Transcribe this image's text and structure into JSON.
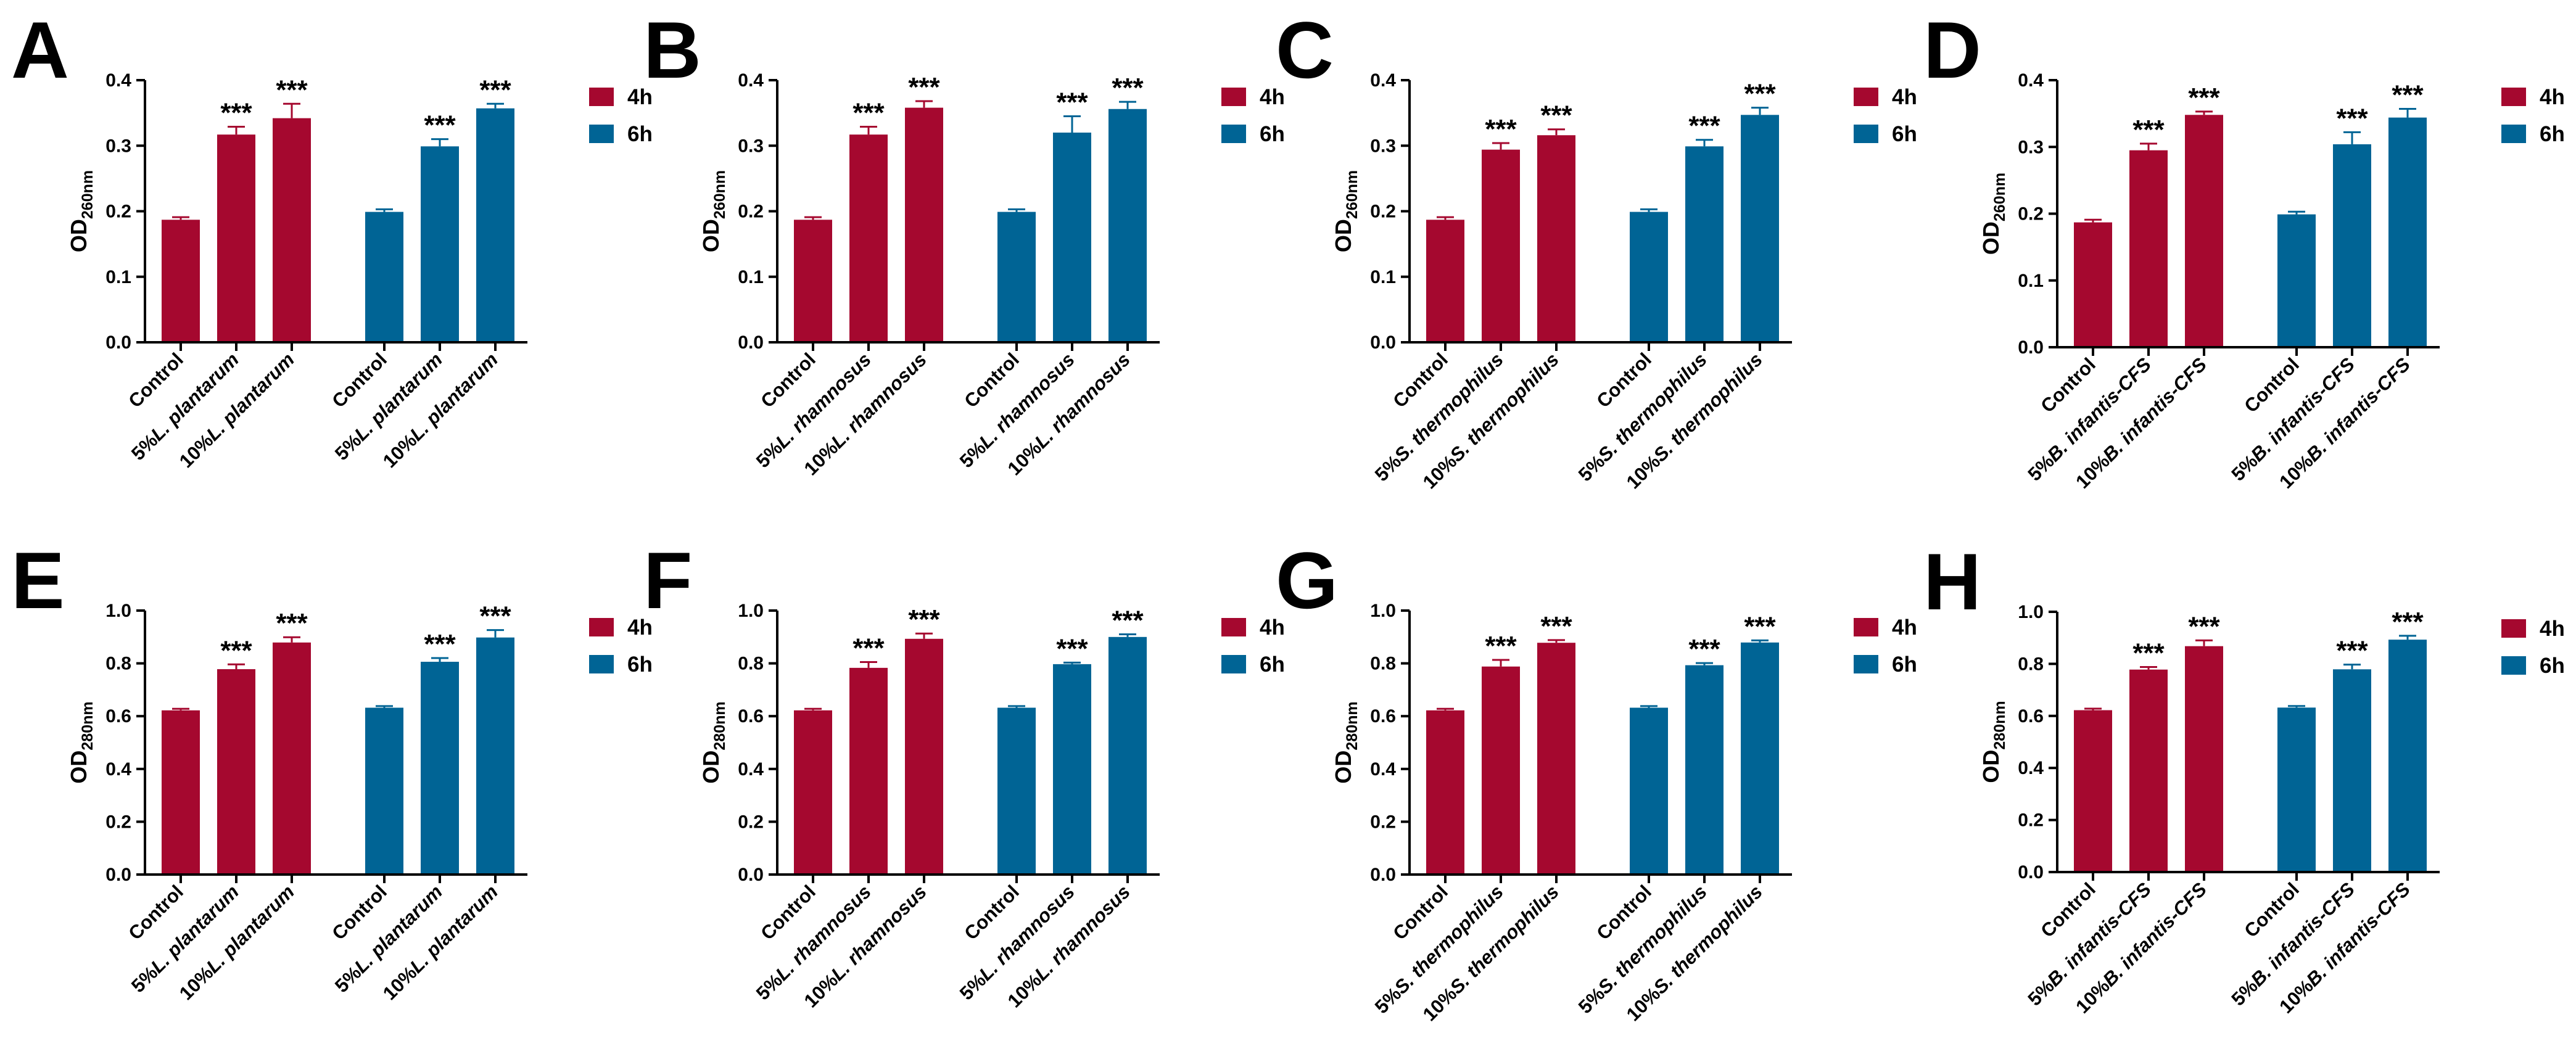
{
  "colors": {
    "4h": "#a5082f",
    "6h": "#006495"
  },
  "chart_data": [
    {
      "panel": "A",
      "type": "bar",
      "ylabel": {
        "main": "OD",
        "sub": "260nm"
      },
      "ylim": [
        0,
        0.4
      ],
      "yticks": [
        "0.0",
        "0.1",
        "0.2",
        "0.3",
        "0.4"
      ],
      "legend": [
        "4h",
        "6h"
      ],
      "legend_position": "top-right",
      "groups": [
        {
          "series": "4h",
          "categories": [
            {
              "pre": "Control",
              "ital": ""
            },
            {
              "pre": "5%",
              "ital": "L. plantarum"
            },
            {
              "pre": "10%",
              "ital": "L. plantarum"
            }
          ],
          "values": [
            0.187,
            0.317,
            0.342
          ],
          "errors": [
            0.004,
            0.012,
            0.022
          ],
          "signif": [
            "",
            "***",
            "***"
          ]
        },
        {
          "series": "6h",
          "categories": [
            {
              "pre": "Control",
              "ital": ""
            },
            {
              "pre": "5%",
              "ital": "L. plantarum"
            },
            {
              "pre": "10%",
              "ital": "L. plantarum"
            }
          ],
          "values": [
            0.199,
            0.299,
            0.357
          ],
          "errors": [
            0.004,
            0.011,
            0.007
          ],
          "signif": [
            "",
            "***",
            "***"
          ]
        }
      ]
    },
    {
      "panel": "B",
      "type": "bar",
      "ylabel": {
        "main": "OD",
        "sub": "260nm"
      },
      "ylim": [
        0,
        0.4
      ],
      "yticks": [
        "0.0",
        "0.1",
        "0.2",
        "0.3",
        "0.4"
      ],
      "legend": [
        "4h",
        "6h"
      ],
      "legend_position": "top-right",
      "groups": [
        {
          "series": "4h",
          "categories": [
            {
              "pre": "Control",
              "ital": ""
            },
            {
              "pre": "5%",
              "ital": "L. rhamnosus"
            },
            {
              "pre": "10%",
              "ital": "L. rhamnosus"
            }
          ],
          "values": [
            0.187,
            0.317,
            0.358
          ],
          "errors": [
            0.004,
            0.012,
            0.01
          ],
          "signif": [
            "",
            "***",
            "***"
          ]
        },
        {
          "series": "6h",
          "categories": [
            {
              "pre": "Control",
              "ital": ""
            },
            {
              "pre": "5%",
              "ital": "L. rhamnosus"
            },
            {
              "pre": "10%",
              "ital": "L. rhamnosus"
            }
          ],
          "values": [
            0.199,
            0.32,
            0.356
          ],
          "errors": [
            0.004,
            0.025,
            0.011
          ],
          "signif": [
            "",
            "***",
            "***"
          ]
        }
      ]
    },
    {
      "panel": "C",
      "type": "bar",
      "ylabel": {
        "main": "OD",
        "sub": "260nm"
      },
      "ylim": [
        0,
        0.4
      ],
      "yticks": [
        "0.0",
        "0.1",
        "0.2",
        "0.3",
        "0.4"
      ],
      "legend": [
        "4h",
        "6h"
      ],
      "legend_position": "top-right",
      "groups": [
        {
          "series": "4h",
          "categories": [
            {
              "pre": "Control",
              "ital": ""
            },
            {
              "pre": "5%",
              "ital": "S. thermophilus"
            },
            {
              "pre": "10%",
              "ital": "S. thermophilus"
            }
          ],
          "values": [
            0.187,
            0.294,
            0.316
          ],
          "errors": [
            0.004,
            0.01,
            0.009
          ],
          "signif": [
            "",
            "***",
            "***"
          ]
        },
        {
          "series": "6h",
          "categories": [
            {
              "pre": "Control",
              "ital": ""
            },
            {
              "pre": "5%",
              "ital": "S. thermophilus"
            },
            {
              "pre": "10%",
              "ital": "S. thermophilus"
            }
          ],
          "values": [
            0.199,
            0.299,
            0.347
          ],
          "errors": [
            0.004,
            0.01,
            0.011
          ],
          "signif": [
            "",
            "***",
            "***"
          ]
        }
      ]
    },
    {
      "panel": "D",
      "type": "bar",
      "ylabel": {
        "main": "OD",
        "sub": "260nm"
      },
      "ylim": [
        0,
        0.4
      ],
      "yticks": [
        "0.0",
        "0.1",
        "0.2",
        "0.3",
        "0.4"
      ],
      "legend": [
        "4h",
        "6h"
      ],
      "legend_position": "top-right",
      "groups": [
        {
          "series": "4h",
          "categories": [
            {
              "pre": "Control",
              "ital": ""
            },
            {
              "pre": "5%",
              "ital": "B. infantis-CFS"
            },
            {
              "pre": "10%",
              "ital": "B. infantis-CFS"
            }
          ],
          "values": [
            0.187,
            0.295,
            0.348
          ],
          "errors": [
            0.004,
            0.01,
            0.005
          ],
          "signif": [
            "",
            "***",
            "***"
          ]
        },
        {
          "series": "6h",
          "categories": [
            {
              "pre": "Control",
              "ital": ""
            },
            {
              "pre": "5%",
              "ital": "B. infantis-CFS"
            },
            {
              "pre": "10%",
              "ital": "B. infantis-CFS"
            }
          ],
          "values": [
            0.199,
            0.304,
            0.344
          ],
          "errors": [
            0.004,
            0.018,
            0.013
          ],
          "signif": [
            "",
            "***",
            "***"
          ]
        }
      ]
    },
    {
      "panel": "E",
      "type": "bar",
      "ylabel": {
        "main": "OD",
        "sub": "280nm"
      },
      "ylim": [
        0,
        1.0
      ],
      "yticks": [
        "0.0",
        "0.2",
        "0.4",
        "0.6",
        "0.8",
        "1.0"
      ],
      "legend": [
        "4h",
        "6h"
      ],
      "legend_position": "top-right",
      "groups": [
        {
          "series": "4h",
          "categories": [
            {
              "pre": "Control",
              "ital": ""
            },
            {
              "pre": "5%",
              "ital": "L. plantarum"
            },
            {
              "pre": "10%",
              "ital": "L. plantarum"
            }
          ],
          "values": [
            0.622,
            0.778,
            0.879
          ],
          "errors": [
            0.006,
            0.018,
            0.02
          ],
          "signif": [
            "",
            "***",
            "***"
          ]
        },
        {
          "series": "6h",
          "categories": [
            {
              "pre": "Control",
              "ital": ""
            },
            {
              "pre": "5%",
              "ital": "L. plantarum"
            },
            {
              "pre": "10%",
              "ital": "L. plantarum"
            }
          ],
          "values": [
            0.632,
            0.806,
            0.898
          ],
          "errors": [
            0.006,
            0.014,
            0.028
          ],
          "signif": [
            "",
            "***",
            "***"
          ]
        }
      ]
    },
    {
      "panel": "F",
      "type": "bar",
      "ylabel": {
        "main": "OD",
        "sub": "280nm"
      },
      "ylim": [
        0,
        1.0
      ],
      "yticks": [
        "0.0",
        "0.2",
        "0.4",
        "0.6",
        "0.8",
        "1.0"
      ],
      "legend": [
        "4h",
        "6h"
      ],
      "legend_position": "top-right",
      "groups": [
        {
          "series": "4h",
          "categories": [
            {
              "pre": "Control",
              "ital": ""
            },
            {
              "pre": "5%",
              "ital": "L. rhamnosus"
            },
            {
              "pre": "10%",
              "ital": "L. rhamnosus"
            }
          ],
          "values": [
            0.622,
            0.783,
            0.893
          ],
          "errors": [
            0.006,
            0.022,
            0.02
          ],
          "signif": [
            "",
            "***",
            "***"
          ]
        },
        {
          "series": "6h",
          "categories": [
            {
              "pre": "Control",
              "ital": ""
            },
            {
              "pre": "5%",
              "ital": "L. rhamnosus"
            },
            {
              "pre": "10%",
              "ital": "L. rhamnosus"
            }
          ],
          "values": [
            0.632,
            0.797,
            0.9
          ],
          "errors": [
            0.006,
            0.006,
            0.01
          ],
          "signif": [
            "",
            "***",
            "***"
          ]
        }
      ]
    },
    {
      "panel": "G",
      "type": "bar",
      "ylabel": {
        "main": "OD",
        "sub": "280nm"
      },
      "ylim": [
        0,
        1.0
      ],
      "yticks": [
        "0.0",
        "0.2",
        "0.4",
        "0.6",
        "0.8",
        "1.0"
      ],
      "legend": [
        "4h",
        "6h"
      ],
      "legend_position": "top-right",
      "groups": [
        {
          "series": "4h",
          "categories": [
            {
              "pre": "Control",
              "ital": ""
            },
            {
              "pre": "5%",
              "ital": "S. thermophilus"
            },
            {
              "pre": "10%",
              "ital": "S. thermophilus"
            }
          ],
          "values": [
            0.622,
            0.788,
            0.878
          ],
          "errors": [
            0.006,
            0.025,
            0.01
          ],
          "signif": [
            "",
            "***",
            "***"
          ]
        },
        {
          "series": "6h",
          "categories": [
            {
              "pre": "Control",
              "ital": ""
            },
            {
              "pre": "5%",
              "ital": "S. thermophilus"
            },
            {
              "pre": "10%",
              "ital": "S. thermophilus"
            }
          ],
          "values": [
            0.632,
            0.793,
            0.879
          ],
          "errors": [
            0.006,
            0.008,
            0.008
          ],
          "signif": [
            "",
            "***",
            "***"
          ]
        }
      ]
    },
    {
      "panel": "H",
      "type": "bar",
      "ylabel": {
        "main": "OD",
        "sub": "280nm"
      },
      "ylim": [
        0,
        1.0
      ],
      "yticks": [
        "0.0",
        "0.2",
        "0.4",
        "0.6",
        "0.8",
        "1.0"
      ],
      "legend": [
        "4h",
        "6h"
      ],
      "legend_position": "top-right",
      "groups": [
        {
          "series": "4h",
          "categories": [
            {
              "pre": "Control",
              "ital": ""
            },
            {
              "pre": "5%",
              "ital": "B. infantis-CFS"
            },
            {
              "pre": "10%",
              "ital": "B. infantis-CFS"
            }
          ],
          "values": [
            0.622,
            0.778,
            0.868
          ],
          "errors": [
            0.006,
            0.01,
            0.022
          ],
          "signif": [
            "",
            "***",
            "***"
          ]
        },
        {
          "series": "6h",
          "categories": [
            {
              "pre": "Control",
              "ital": ""
            },
            {
              "pre": "5%",
              "ital": "B. infantis-CFS"
            },
            {
              "pre": "10%",
              "ital": "B. infantis-CFS"
            }
          ],
          "values": [
            0.632,
            0.779,
            0.893
          ],
          "errors": [
            0.006,
            0.018,
            0.015
          ],
          "signif": [
            "",
            "***",
            "***"
          ]
        }
      ]
    }
  ]
}
